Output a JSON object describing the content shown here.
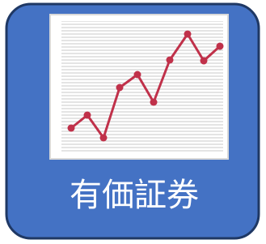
{
  "icon": {
    "label": "有価証券"
  }
}
